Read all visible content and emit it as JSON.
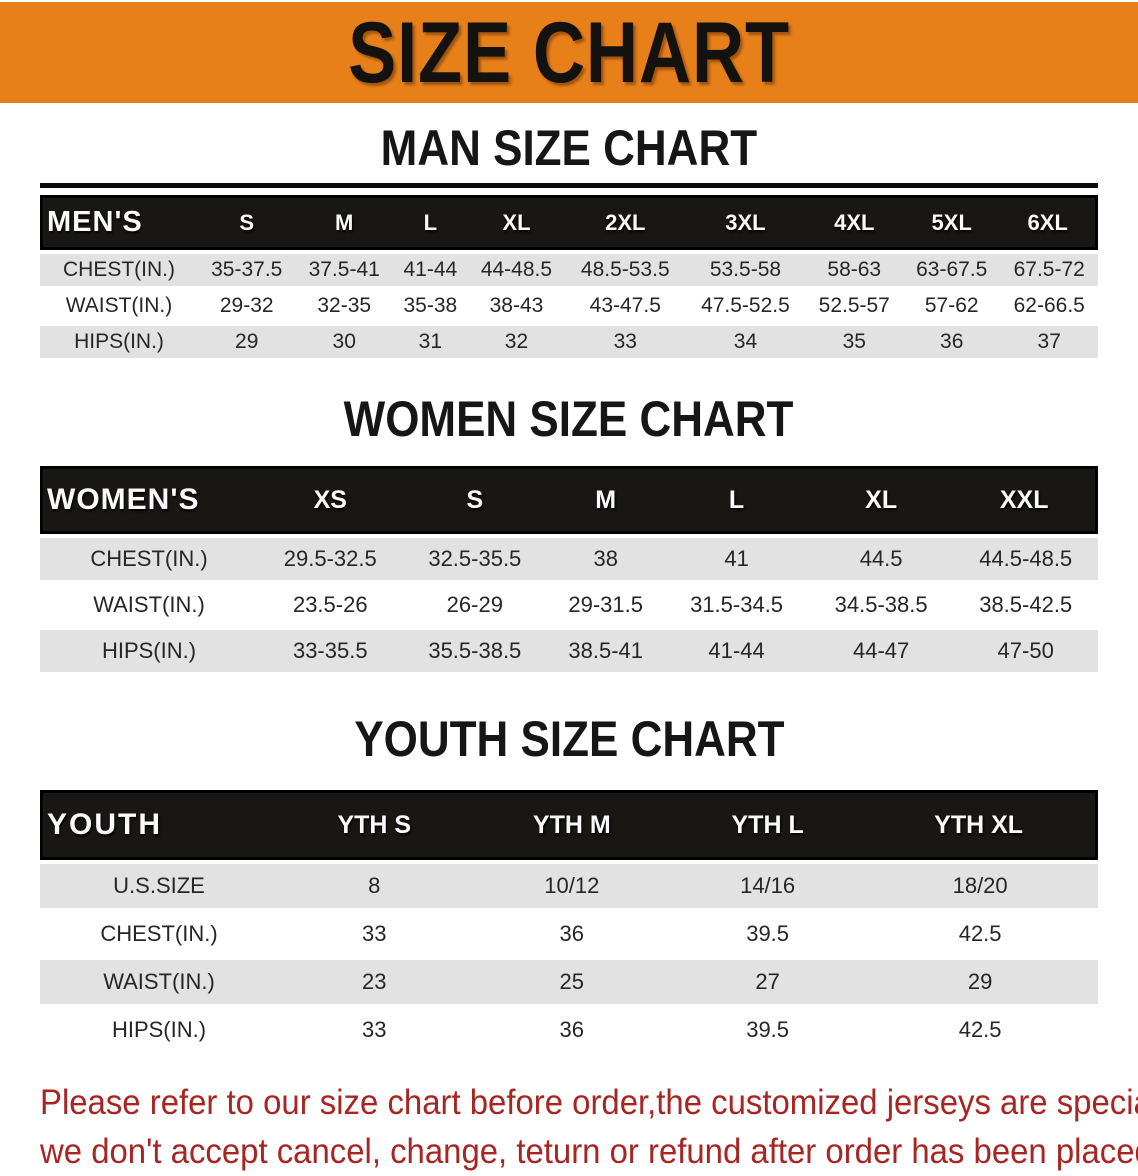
{
  "banner": {
    "title": "SIZE CHART",
    "bg_color": "#e8801a"
  },
  "sections": [
    {
      "heading": "MAN SIZE CHART",
      "table": {
        "label": "MEN'S",
        "columns": [
          "S",
          "M",
          "L",
          "XL",
          "2XL",
          "3XL",
          "4XL",
          "5XL",
          "6XL"
        ],
        "rows": [
          {
            "label": "CHEST(IN.)",
            "values": [
              "35-37.5",
              "37.5-41",
              "41-44",
              "44-48.5",
              "48.5-53.5",
              "53.5-58",
              "58-63",
              "63-67.5",
              "67.5-72"
            ]
          },
          {
            "label": "WAIST(IN.)",
            "values": [
              "29-32",
              "32-35",
              "35-38",
              "38-43",
              "43-47.5",
              "47.5-52.5",
              "52.5-57",
              "57-62",
              "62-66.5"
            ]
          },
          {
            "label": "HIPS(IN.)",
            "values": [
              "29",
              "30",
              "31",
              "32",
              "33",
              "34",
              "35",
              "36",
              "37"
            ]
          }
        ]
      }
    },
    {
      "heading": "WOMEN SIZE CHART",
      "table": {
        "label": "WOMEN'S",
        "columns": [
          "XS",
          "S",
          "M",
          "L",
          "XL",
          "XXL"
        ],
        "rows": [
          {
            "label": "CHEST(IN.)",
            "values": [
              "29.5-32.5",
              "32.5-35.5",
              "38",
              "41",
              "44.5",
              "44.5-48.5"
            ]
          },
          {
            "label": "WAIST(IN.)",
            "values": [
              "23.5-26",
              "26-29",
              "29-31.5",
              "31.5-34.5",
              "34.5-38.5",
              "38.5-42.5"
            ]
          },
          {
            "label": "HIPS(IN.)",
            "values": [
              "33-35.5",
              "35.5-38.5",
              "38.5-41",
              "41-44",
              "44-47",
              "47-50"
            ]
          }
        ]
      }
    },
    {
      "heading": "YOUTH SIZE CHART",
      "table": {
        "label": "YOUTH",
        "columns": [
          "YTH S",
          "YTH M",
          "YTH L",
          "YTH XL"
        ],
        "rows": [
          {
            "label": "U.S.SIZE",
            "values": [
              "8",
              "10/12",
              "14/16",
              "18/20"
            ]
          },
          {
            "label": "CHEST(IN.)",
            "values": [
              "33",
              "36",
              "39.5",
              "42.5"
            ]
          },
          {
            "label": "WAIST(IN.)",
            "values": [
              "23",
              "25",
              "27",
              "29"
            ]
          },
          {
            "label": "HIPS(IN.)",
            "values": [
              "33",
              "36",
              "39.5",
              "42.5"
            ]
          }
        ]
      }
    }
  ],
  "disclaimer": {
    "line1": "Please refer to our size chart before order,the customized jerseys are special products,",
    "line2": "we don't accept cancel, change, teturn or refund after order has been placed!",
    "color": "#a72523"
  }
}
